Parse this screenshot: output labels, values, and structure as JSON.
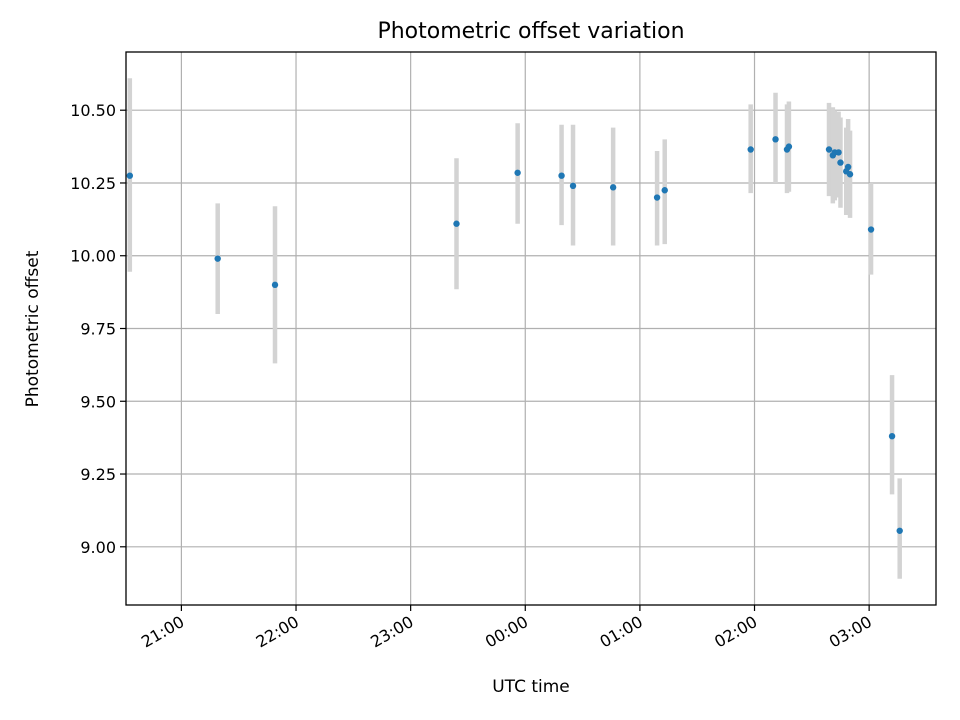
{
  "chart_data": {
    "type": "scatter",
    "title": "Photometric offset variation",
    "xlabel": "UTC time",
    "ylabel": "Photometric offset",
    "x_axis_type": "time",
    "xlim": [
      "20:33",
      "03:35"
    ],
    "ylim": [
      8.8,
      10.7
    ],
    "x_ticks": [
      "21:00",
      "22:00",
      "23:00",
      "00:00",
      "01:00",
      "02:00",
      "03:00"
    ],
    "y_ticks": [
      "9.00",
      "9.25",
      "9.50",
      "9.75",
      "10.00",
      "10.25",
      "10.50"
    ],
    "grid": true,
    "legend": "none",
    "point_color": "#1f77b4",
    "errorbar_color": "#d3d3d3",
    "series": [
      {
        "points": [
          {
            "time": "20:33",
            "y": 10.275,
            "ylow": 9.945,
            "yhigh": 10.61
          },
          {
            "time": "21:19",
            "y": 9.99,
            "ylow": 9.8,
            "yhigh": 10.18
          },
          {
            "time": "21:49",
            "y": 9.9,
            "ylow": 9.63,
            "yhigh": 10.17
          },
          {
            "time": "23:24",
            "y": 10.11,
            "ylow": 9.885,
            "yhigh": 10.335
          },
          {
            "time": "23:56",
            "y": 10.285,
            "ylow": 10.11,
            "yhigh": 10.455
          },
          {
            "time": "00:19",
            "y": 10.275,
            "ylow": 10.105,
            "yhigh": 10.45
          },
          {
            "time": "00:25",
            "y": 10.24,
            "ylow": 10.035,
            "yhigh": 10.45
          },
          {
            "time": "00:46",
            "y": 10.235,
            "ylow": 10.035,
            "yhigh": 10.44
          },
          {
            "time": "01:09",
            "y": 10.2,
            "ylow": 10.035,
            "yhigh": 10.36
          },
          {
            "time": "01:13",
            "y": 10.225,
            "ylow": 10.04,
            "yhigh": 10.4
          },
          {
            "time": "01:58",
            "y": 10.365,
            "ylow": 10.215,
            "yhigh": 10.52
          },
          {
            "time": "02:11",
            "y": 10.4,
            "ylow": 10.25,
            "yhigh": 10.56
          },
          {
            "time": "02:17",
            "y": 10.365,
            "ylow": 10.215,
            "yhigh": 10.52
          },
          {
            "time": "02:18",
            "y": 10.375,
            "ylow": 10.22,
            "yhigh": 10.53
          },
          {
            "time": "02:39",
            "y": 10.365,
            "ylow": 10.205,
            "yhigh": 10.525
          },
          {
            "time": "02:41",
            "y": 10.345,
            "ylow": 10.18,
            "yhigh": 10.51
          },
          {
            "time": "02:42",
            "y": 10.355,
            "ylow": 10.19,
            "yhigh": 10.5
          },
          {
            "time": "02:44",
            "y": 10.355,
            "ylow": 10.2,
            "yhigh": 10.495
          },
          {
            "time": "02:45",
            "y": 10.32,
            "ylow": 10.165,
            "yhigh": 10.475
          },
          {
            "time": "02:48",
            "y": 10.29,
            "ylow": 10.14,
            "yhigh": 10.44
          },
          {
            "time": "02:49",
            "y": 10.305,
            "ylow": 10.14,
            "yhigh": 10.47
          },
          {
            "time": "02:50",
            "y": 10.28,
            "ylow": 10.13,
            "yhigh": 10.43
          },
          {
            "time": "03:01",
            "y": 10.09,
            "ylow": 9.935,
            "yhigh": 10.25
          },
          {
            "time": "03:12",
            "y": 9.38,
            "ylow": 9.18,
            "yhigh": 9.59
          },
          {
            "time": "03:16",
            "y": 9.055,
            "ylow": 8.89,
            "yhigh": 9.235
          }
        ]
      }
    ]
  }
}
